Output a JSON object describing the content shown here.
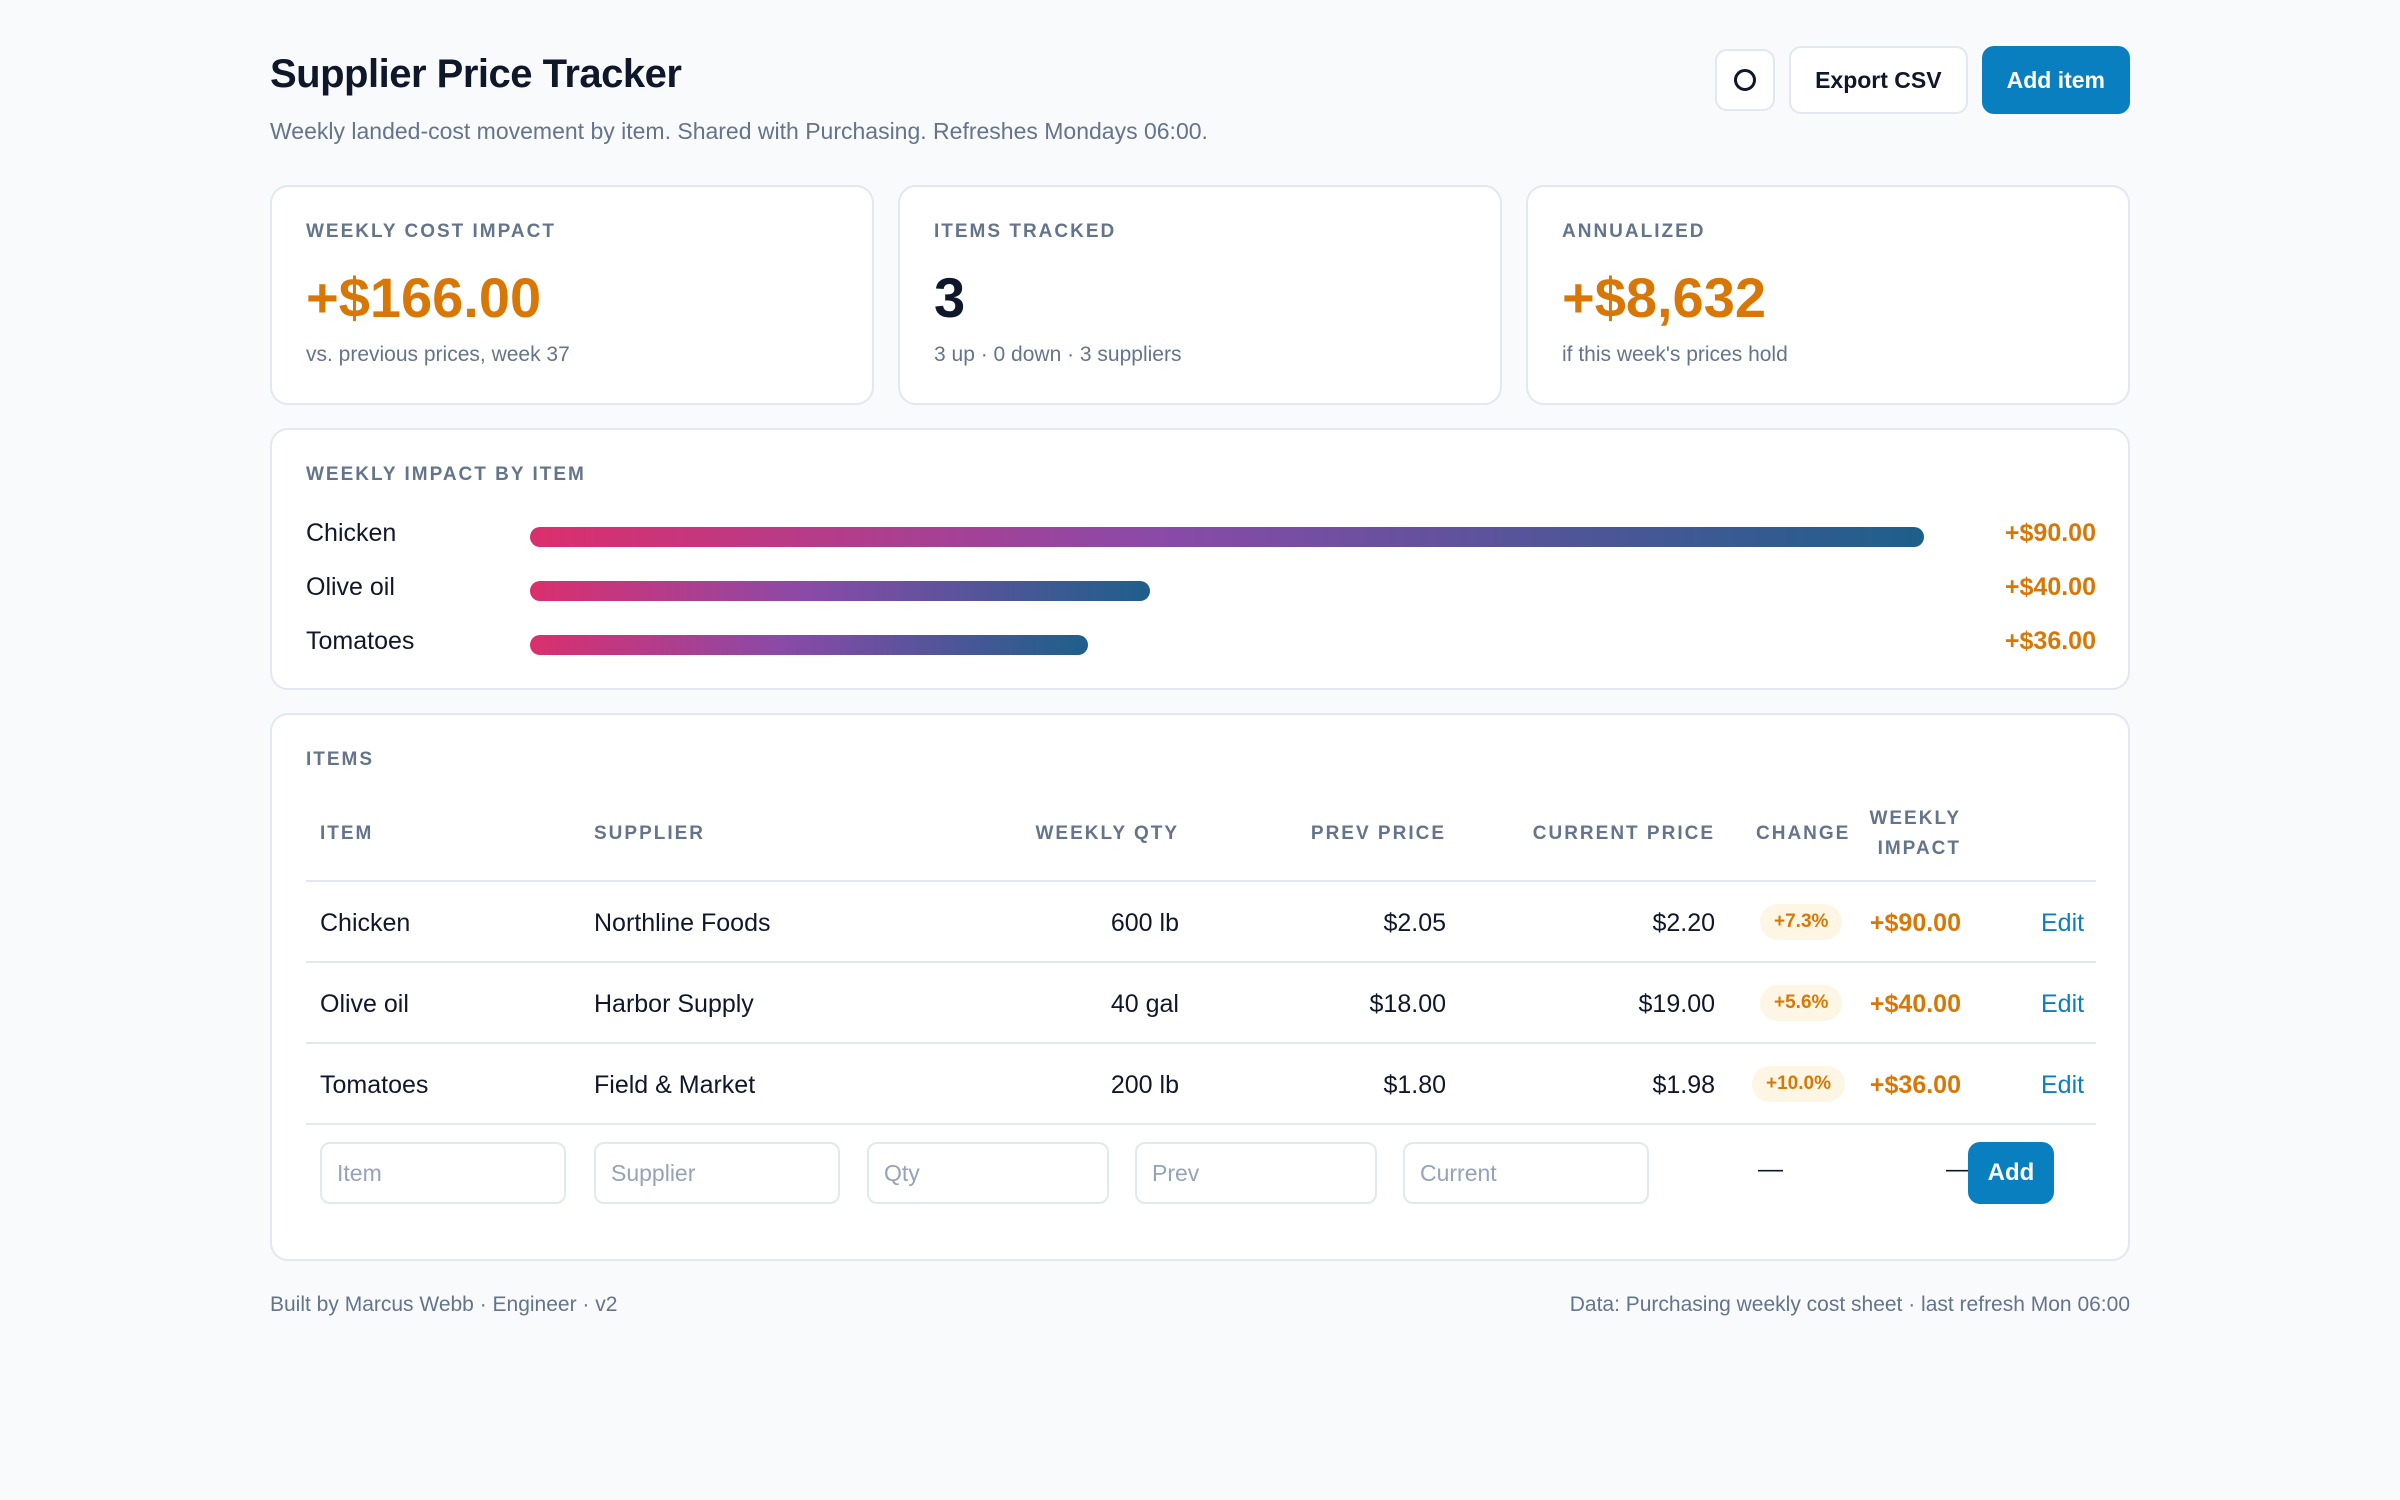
{
  "header": {
    "title": "Supplier Price Tracker",
    "subtitle": "Weekly landed-cost movement by item. Shared with Purchasing. Refreshes Mondays 06:00.",
    "refresh_icon": "circle-icon",
    "export_label": "Export CSV",
    "add_label": "Add item"
  },
  "stats": [
    {
      "label": "WEEKLY COST IMPACT",
      "value": "+$166.00",
      "sub": "vs. previous prices, week 37"
    },
    {
      "label": "ITEMS TRACKED",
      "value": "3",
      "sub": "3 up · 0 down · 3 suppliers"
    },
    {
      "label": "ANNUALIZED",
      "value": "+$8,632",
      "sub": "if this week's prices hold"
    }
  ],
  "impact": {
    "label": "WEEKLY IMPACT BY ITEM",
    "items": [
      {
        "name": "Chicken",
        "value": "+$90.00",
        "amount": 90
      },
      {
        "name": "Olive oil",
        "value": "+$40.00",
        "amount": 40
      },
      {
        "name": "Tomatoes",
        "value": "+$36.00",
        "amount": 36
      }
    ]
  },
  "items": {
    "label": "ITEMS",
    "columns": {
      "item": "ITEM",
      "supplier": "SUPPLIER",
      "qty": "WEEKLY QTY",
      "prev": "PREV PRICE",
      "current": "CURRENT PRICE",
      "change": "CHANGE",
      "impact_line1": "WEEKLY",
      "impact_line2": "IMPACT"
    },
    "rows": [
      {
        "item": "Chicken",
        "supplier": "Northline Foods",
        "qty": "600 lb",
        "prev": "$2.05",
        "current": "$2.20",
        "change": "+7.3%",
        "impact": "+$90.00",
        "action": "Edit"
      },
      {
        "item": "Olive oil",
        "supplier": "Harbor Supply",
        "qty": "40 gal",
        "prev": "$18.00",
        "current": "$19.00",
        "change": "+5.6%",
        "impact": "+$40.00",
        "action": "Edit"
      },
      {
        "item": "Tomatoes",
        "supplier": "Field & Market",
        "qty": "200 lb",
        "prev": "$1.80",
        "current": "$1.98",
        "change": "+10.0%",
        "impact": "+$36.00",
        "action": "Edit"
      }
    ],
    "new_row": {
      "item_placeholder": "Item",
      "supplier_placeholder": "Supplier",
      "qty_placeholder": "Qty",
      "prev_placeholder": "Prev",
      "current_placeholder": "Current",
      "change_dash": "—",
      "impact_dash": "—",
      "add_label": "Add"
    }
  },
  "footer": {
    "left": "Built by Marcus Webb · Engineer · v2",
    "right": "Data: Purchasing weekly cost sheet · last refresh Mon 06:00"
  },
  "colors": {
    "accent": "#0a7fc0",
    "warning": "#d97706",
    "bar_gradient": [
      "#db2f6d",
      "#8a4aa8",
      "#1e5f8a"
    ]
  }
}
